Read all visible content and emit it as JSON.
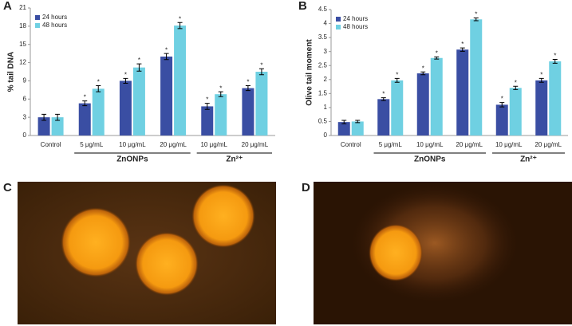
{
  "chart_data": [
    {
      "type": "bar",
      "panel_label": "A",
      "y_label": "% tail DNA",
      "categories": [
        "Control",
        "5 μg/mL",
        "10 μg/mL",
        "20 μg/mL",
        "10 μg/mL",
        "20 μg/mL"
      ],
      "groups": [
        {
          "label": null,
          "size": 1
        },
        {
          "label": "ZnONPs",
          "size": 3
        },
        {
          "label": "Zn²⁺",
          "size": 2
        }
      ],
      "series": [
        {
          "name": "24 hours",
          "color": "#3a4ea3",
          "values": [
            3.0,
            5.3,
            9.0,
            13.0,
            4.8,
            7.8
          ],
          "errors": [
            0.5,
            0.4,
            0.4,
            0.5,
            0.5,
            0.4
          ],
          "markers": [
            null,
            "*",
            "*",
            "*",
            "*",
            "*"
          ]
        },
        {
          "name": "48 hours",
          "color": "#6fd0e2",
          "values": [
            3.0,
            7.7,
            11.2,
            18.1,
            6.8,
            10.5
          ],
          "errors": [
            0.5,
            0.5,
            0.6,
            0.5,
            0.4,
            0.5
          ],
          "markers": [
            null,
            "*",
            "*",
            "*",
            "*",
            "*"
          ]
        }
      ],
      "ylim": [
        0,
        21
      ],
      "yticks": [
        0,
        3,
        6,
        9,
        12,
        15,
        18,
        21
      ],
      "legend": "upper left"
    },
    {
      "type": "bar",
      "panel_label": "B",
      "y_label": "Olive tail moment",
      "categories": [
        "Control",
        "5 μg/mL",
        "10 μg/mL",
        "20 μg/mL",
        "10 μg/mL",
        "20 μg/mL"
      ],
      "groups": [
        {
          "label": null,
          "size": 1
        },
        {
          "label": "ZnONPs",
          "size": 3
        },
        {
          "label": "Zn²⁺",
          "size": 2
        }
      ],
      "series": [
        {
          "name": "24 hours",
          "color": "#3a4ea3",
          "values": [
            0.48,
            1.3,
            2.22,
            3.07,
            1.1,
            1.97
          ],
          "errors": [
            0.06,
            0.05,
            0.05,
            0.06,
            0.08,
            0.07
          ],
          "markers": [
            null,
            "*",
            "*",
            "*",
            "*",
            "*"
          ]
        },
        {
          "name": "48 hours",
          "color": "#6fd0e2",
          "values": [
            0.5,
            1.97,
            2.77,
            4.15,
            1.7,
            2.65
          ],
          "errors": [
            0.04,
            0.07,
            0.04,
            0.05,
            0.06,
            0.07
          ],
          "markers": [
            null,
            "*",
            "*",
            "*",
            "*",
            "*"
          ]
        }
      ],
      "ylim": [
        0,
        4.5
      ],
      "yticks": [
        0,
        0.5,
        1,
        1.5,
        2,
        2.5,
        3,
        3.5,
        4,
        4.5
      ],
      "legend": "upper left"
    }
  ],
  "images": [
    {
      "panel_label": "C"
    },
    {
      "panel_label": "D"
    }
  ]
}
